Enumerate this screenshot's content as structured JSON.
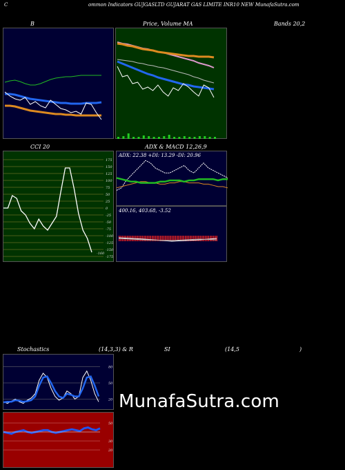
{
  "header": {
    "left_letter": "C",
    "title": "ommon  Indicators GUJGASLTD GUJARAT GAS LIMITE INR10  NEW MunafaSutra.com"
  },
  "labels": {
    "b": "B",
    "price_ma": "Price,  Volume  MA",
    "bands": "Bands 20,2",
    "cci": "CCI 20",
    "adx_macd": "ADX  & MACD 12,26,9",
    "adx_values": "ADX: 22.38  +DI: 13.29 -DI: 20.96",
    "macd_values": "400.16,  403.68,  -3.52",
    "cci_last": "-160",
    "stoch_title": "Stochastics",
    "stoch_params": "(14,3,3) & R",
    "si": "SI",
    "rsi_params": "(14,5",
    "rsi_close": ")",
    "watermark": "MunafaSutra.com"
  },
  "colors": {
    "panel_bg": "#000033",
    "price_bg": "#003300",
    "cci_bg": "#003300",
    "rsi_bg": "#990000",
    "blue": "#2255ee",
    "orange": "#e08020",
    "green_line": "#22bb22",
    "white": "#ffffff"
  },
  "chart_data": [
    {
      "type": "line",
      "name": "bollinger",
      "series": [
        {
          "color": "green",
          "values": [
            78,
            76,
            75,
            77,
            80,
            82,
            82,
            80,
            77,
            74,
            72,
            71,
            70,
            70,
            69,
            68,
            68,
            68,
            68,
            68
          ]
        },
        {
          "color": "blue",
          "values": [
            95,
            95,
            96,
            98,
            100,
            102,
            103,
            104,
            105,
            106,
            107,
            108,
            108,
            109,
            109,
            109,
            108,
            108,
            108,
            107
          ]
        },
        {
          "color": "orange",
          "values": [
            112,
            112,
            113,
            115,
            117,
            119,
            120,
            121,
            122,
            123,
            124,
            124,
            125,
            125,
            126,
            126,
            126,
            126,
            126,
            126
          ]
        },
        {
          "color": "white",
          "values": [
            92,
            98,
            102,
            104,
            100,
            110,
            106,
            112,
            115,
            104,
            110,
            116,
            118,
            122,
            120,
            124,
            108,
            110,
            122,
            132
          ]
        }
      ]
    },
    {
      "type": "line",
      "name": "price_ma",
      "series": [
        {
          "color": "pink",
          "values": [
            60,
            62,
            63,
            65,
            67,
            69,
            70,
            72,
            74,
            75,
            77,
            79,
            81,
            83,
            85,
            87,
            90,
            92,
            94,
            97
          ]
        },
        {
          "color": "orange",
          "values": [
            62,
            63,
            65,
            66,
            68,
            70,
            71,
            72,
            74,
            75,
            76,
            77,
            78,
            79,
            80,
            80,
            81,
            81,
            81,
            82
          ]
        },
        {
          "color": "grey",
          "values": [
            85,
            86,
            87,
            88,
            90,
            91,
            93,
            94,
            96,
            97,
            99,
            101,
            103,
            105,
            107,
            110,
            112,
            115,
            117,
            119
          ]
        },
        {
          "color": "blue",
          "values": [
            88,
            91,
            94,
            97,
            100,
            103,
            106,
            108,
            111,
            113,
            115,
            117,
            119,
            121,
            122,
            124,
            125,
            126,
            127,
            128
          ]
        },
        {
          "color": "white",
          "values": [
            95,
            110,
            108,
            120,
            118,
            128,
            125,
            130,
            122,
            132,
            138,
            126,
            130,
            120,
            125,
            132,
            138,
            122,
            126,
            140
          ]
        }
      ],
      "volume": [
        3,
        4,
        8,
        3,
        3,
        5,
        4,
        3,
        3,
        4,
        6,
        3,
        3,
        4,
        3,
        3,
        4,
        4,
        3,
        3
      ]
    },
    {
      "type": "line",
      "name": "cci",
      "yticks": [
        175,
        150,
        125,
        100,
        75,
        50,
        25,
        0,
        -25,
        -50,
        -75,
        -100,
        -125,
        -150,
        -175
      ],
      "values": [
        0,
        0,
        45,
        35,
        -10,
        -25,
        -55,
        -75,
        -40,
        -65,
        -80,
        -55,
        -30,
        60,
        145,
        145,
        70,
        -20,
        -80,
        -110,
        -160
      ]
    },
    {
      "type": "line",
      "name": "adx",
      "series": [
        {
          "color": "white",
          "values": [
            12,
            14,
            20,
            24,
            28,
            32,
            36,
            34,
            30,
            28,
            26,
            26,
            28,
            30,
            32,
            28,
            26,
            30,
            34,
            30,
            28,
            26,
            24,
            22
          ]
        },
        {
          "color": "orange",
          "values": [
            14,
            15,
            16,
            17,
            18,
            19,
            19,
            18,
            18,
            17,
            17,
            18,
            18,
            19,
            19,
            18,
            18,
            18,
            17,
            17,
            16,
            15,
            15,
            14
          ]
        },
        {
          "color": "green",
          "values": [
            22,
            21,
            20,
            19,
            19,
            18,
            18,
            18,
            18,
            19,
            19,
            20,
            20,
            20,
            19,
            20,
            20,
            21,
            21,
            21,
            21,
            20,
            21,
            21
          ]
        }
      ]
    },
    {
      "type": "bar",
      "name": "macd",
      "values": [
        -3.52
      ],
      "macd": 400.16,
      "signal": 403.68,
      "histogram": -3.52
    },
    {
      "type": "line",
      "name": "stochastics",
      "yticks": [
        80,
        50,
        20
      ],
      "series": [
        {
          "color": "white",
          "values": [
            15,
            12,
            16,
            20,
            15,
            12,
            18,
            22,
            30,
            55,
            68,
            60,
            40,
            25,
            18,
            22,
            35,
            30,
            20,
            25,
            60,
            72,
            55,
            30,
            15
          ]
        },
        {
          "color": "blue",
          "values": [
            14,
            15,
            15,
            18,
            17,
            15,
            16,
            18,
            25,
            45,
            60,
            62,
            50,
            35,
            25,
            22,
            30,
            28,
            25,
            25,
            40,
            60,
            62,
            45,
            25
          ]
        }
      ]
    },
    {
      "type": "line",
      "name": "rsi",
      "yticks": [
        50,
        30,
        20
      ],
      "values": [
        40,
        39,
        38,
        40,
        41,
        42,
        40,
        39,
        40,
        41,
        42,
        42,
        40,
        39,
        40,
        41,
        42,
        43,
        42,
        41,
        44,
        45,
        43,
        42,
        44
      ]
    }
  ]
}
